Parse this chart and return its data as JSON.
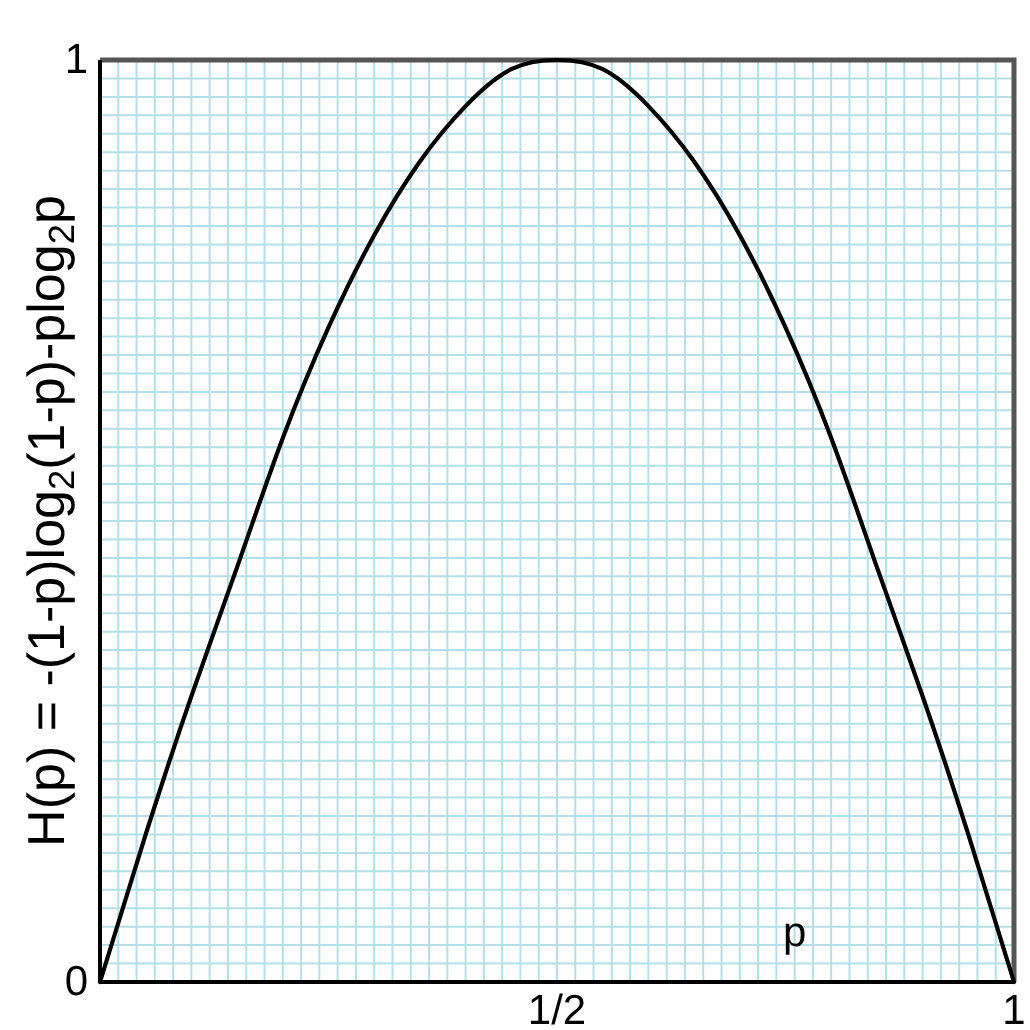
{
  "chart_data": {
    "type": "line",
    "xlabel": "p",
    "ylabel": "H(p) = -(1-p)log$_{2}$(1-p)-plog$_{2}$p",
    "x": [
      0,
      0.05,
      0.1,
      0.15,
      0.2,
      0.25,
      0.3,
      0.35,
      0.4,
      0.45,
      0.5,
      0.55,
      0.6,
      0.65,
      0.7,
      0.75,
      0.8,
      0.85,
      0.9,
      0.95,
      1
    ],
    "series": [
      {
        "color": "#000000",
        "values": [
          0,
          0.16,
          0.31,
          0.45,
          0.59,
          0.71,
          0.81,
          0.89,
          0.95,
          0.99,
          1,
          0.99,
          0.95,
          0.89,
          0.81,
          0.71,
          0.59,
          0.45,
          0.31,
          0.16,
          0
        ]
      }
    ],
    "xlim": [
      0,
      1
    ],
    "ylim": [
      0,
      1
    ],
    "xticks": [
      {
        "value": 0,
        "label": null
      },
      {
        "value": 0.02,
        "label": null
      },
      {
        "value": 0.04,
        "label": null
      },
      {
        "value": 0.06,
        "label": null
      },
      {
        "value": 0.08,
        "label": null
      },
      {
        "value": 0.1,
        "label": null
      },
      {
        "value": 0.12,
        "label": null
      },
      {
        "value": 0.14,
        "label": null
      },
      {
        "value": 0.16,
        "label": null
      },
      {
        "value": 0.18,
        "label": null
      },
      {
        "value": 0.2,
        "label": null
      },
      {
        "value": 0.22,
        "label": null
      },
      {
        "value": 0.24,
        "label": null
      },
      {
        "value": 0.26,
        "label": null
      },
      {
        "value": 0.28,
        "label": null
      },
      {
        "value": 0.3,
        "label": null
      },
      {
        "value": 0.32,
        "label": null
      },
      {
        "value": 0.34,
        "label": null
      },
      {
        "value": 0.36,
        "label": null
      },
      {
        "value": 0.38,
        "label": null
      },
      {
        "value": 0.4,
        "label": null
      },
      {
        "value": 0.42,
        "label": null
      },
      {
        "value": 0.44,
        "label": null
      },
      {
        "value": 0.46,
        "label": null
      },
      {
        "value": 0.48,
        "label": null
      },
      {
        "value": 0.5,
        "label": "1/2"
      },
      {
        "value": 0.52,
        "label": null
      },
      {
        "value": 0.54,
        "label": null
      },
      {
        "value": 0.56,
        "label": null
      },
      {
        "value": 0.58,
        "label": null
      },
      {
        "value": 0.6,
        "label": null
      },
      {
        "value": 0.62,
        "label": null
      },
      {
        "value": 0.64,
        "label": null
      },
      {
        "value": 0.66,
        "label": null
      },
      {
        "value": 0.68,
        "label": null
      },
      {
        "value": 0.7,
        "label": null
      },
      {
        "value": 0.72,
        "label": null
      },
      {
        "value": 0.74,
        "label": null
      },
      {
        "value": 0.76,
        "label": null
      },
      {
        "value": 0.78,
        "label": null
      },
      {
        "value": 0.8,
        "label": null
      },
      {
        "value": 0.82,
        "label": null
      },
      {
        "value": 0.84,
        "label": null
      },
      {
        "value": 0.86,
        "label": null
      },
      {
        "value": 0.88,
        "label": null
      },
      {
        "value": 0.9,
        "label": null
      },
      {
        "value": 0.92,
        "label": null
      },
      {
        "value": 0.94,
        "label": null
      },
      {
        "value": 0.96,
        "label": null
      },
      {
        "value": 0.98,
        "label": null
      },
      {
        "value": 1,
        "label": "1"
      }
    ],
    "yticks": [
      {
        "value": 0,
        "label": "0"
      },
      {
        "value": 0.02,
        "label": null
      },
      {
        "value": 0.04,
        "label": null
      },
      {
        "value": 0.06,
        "label": null
      },
      {
        "value": 0.08,
        "label": null
      },
      {
        "value": 0.1,
        "label": null
      },
      {
        "value": 0.12,
        "label": null
      },
      {
        "value": 0.14,
        "label": null
      },
      {
        "value": 0.16,
        "label": null
      },
      {
        "value": 0.18,
        "label": null
      },
      {
        "value": 0.2,
        "label": null
      },
      {
        "value": 0.22,
        "label": null
      },
      {
        "value": 0.24,
        "label": null
      },
      {
        "value": 0.26,
        "label": null
      },
      {
        "value": 0.28,
        "label": null
      },
      {
        "value": 0.3,
        "label": null
      },
      {
        "value": 0.32,
        "label": null
      },
      {
        "value": 0.34,
        "label": null
      },
      {
        "value": 0.36,
        "label": null
      },
      {
        "value": 0.38,
        "label": null
      },
      {
        "value": 0.4,
        "label": null
      },
      {
        "value": 0.42,
        "label": null
      },
      {
        "value": 0.44,
        "label": null
      },
      {
        "value": 0.46,
        "label": null
      },
      {
        "value": 0.48,
        "label": null
      },
      {
        "value": 0.5,
        "label": null
      },
      {
        "value": 0.52,
        "label": null
      },
      {
        "value": 0.54,
        "label": null
      },
      {
        "value": 0.56,
        "label": null
      },
      {
        "value": 0.58,
        "label": null
      },
      {
        "value": 0.6,
        "label": null
      },
      {
        "value": 0.62,
        "label": null
      },
      {
        "value": 0.64,
        "label": null
      },
      {
        "value": 0.66,
        "label": null
      },
      {
        "value": 0.68,
        "label": null
      },
      {
        "value": 0.7,
        "label": null
      },
      {
        "value": 0.72,
        "label": null
      },
      {
        "value": 0.74,
        "label": null
      },
      {
        "value": 0.76,
        "label": null
      },
      {
        "value": 0.78,
        "label": null
      },
      {
        "value": 0.8,
        "label": null
      },
      {
        "value": 0.82,
        "label": null
      },
      {
        "value": 0.84,
        "label": null
      },
      {
        "value": 0.86,
        "label": null
      },
      {
        "value": 0.88,
        "label": null
      },
      {
        "value": 0.9,
        "label": null
      },
      {
        "value": 0.92,
        "label": null
      },
      {
        "value": 0.94,
        "label": null
      },
      {
        "value": 0.96,
        "label": null
      },
      {
        "value": 0.98,
        "label": null
      },
      {
        "value": 1,
        "label": "1"
      }
    ],
    "grid": true
  }
}
